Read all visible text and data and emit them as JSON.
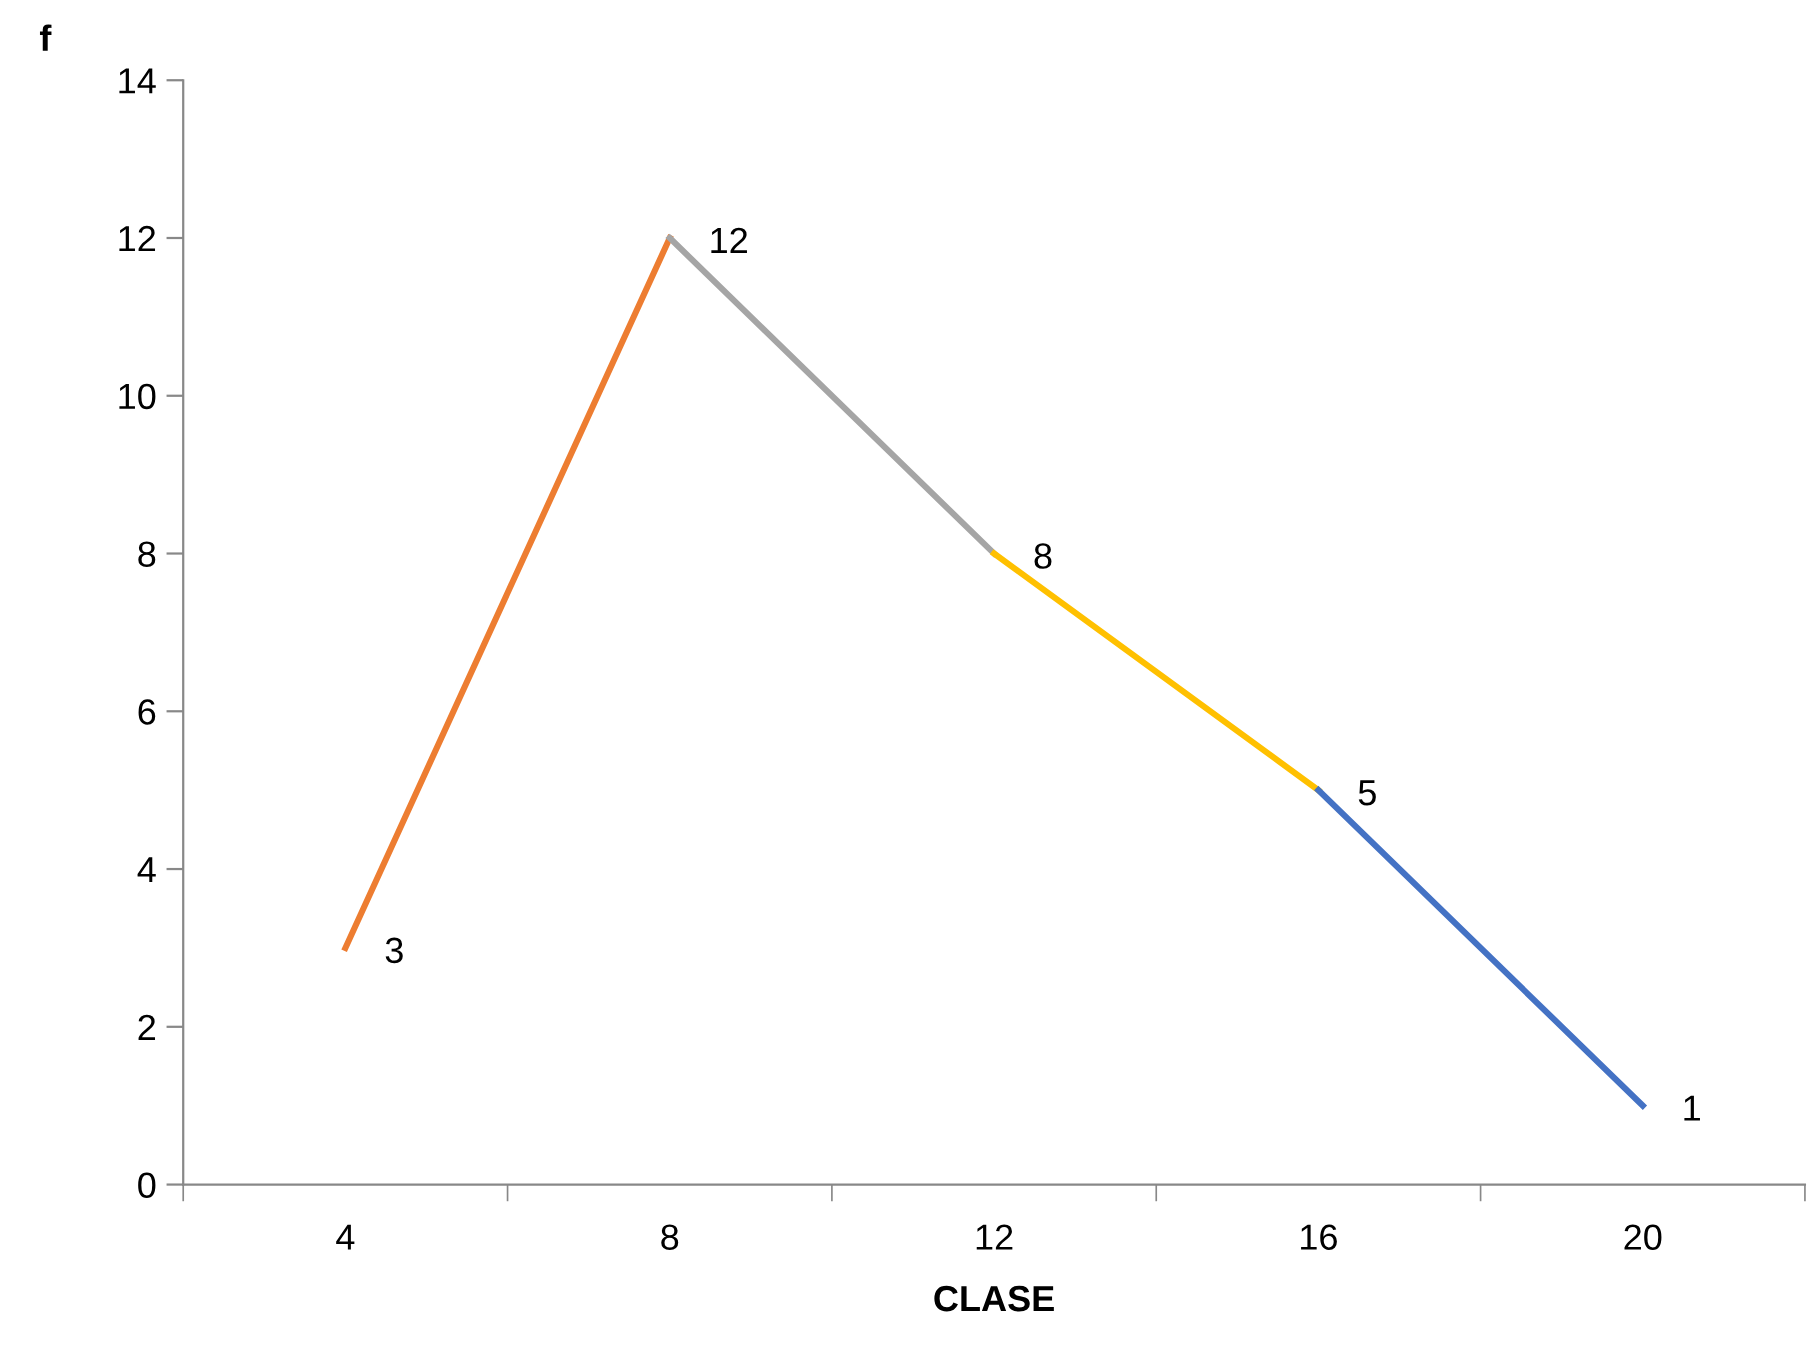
{
  "chart_data": {
    "type": "line",
    "xlabel": "CLASE",
    "ylabel": "f",
    "categories": [
      "4",
      "8",
      "12",
      "16",
      "20"
    ],
    "series": [
      {
        "color": "#ed7d31",
        "values": [
          3,
          12,
          null,
          null,
          null
        ],
        "value_labels": [
          "3",
          "12",
          null,
          null,
          null
        ]
      },
      {
        "color": "#a5a5a5",
        "values": [
          null,
          12,
          8,
          null,
          null
        ],
        "value_labels": [
          null,
          null,
          "8",
          null,
          null
        ]
      },
      {
        "color": "#ffc000",
        "values": [
          null,
          null,
          8,
          5,
          null
        ],
        "value_labels": [
          null,
          null,
          null,
          "5",
          null
        ]
      },
      {
        "color": "#4472c4",
        "values": [
          null,
          null,
          null,
          5,
          1
        ],
        "value_labels": [
          null,
          null,
          null,
          null,
          "1"
        ]
      }
    ],
    "ylim": [
      0,
      14
    ],
    "yticks": [
      0,
      2,
      4,
      6,
      8,
      10,
      12,
      14
    ],
    "grid": false,
    "legend": false,
    "marker": "none",
    "line_style": "solid"
  }
}
